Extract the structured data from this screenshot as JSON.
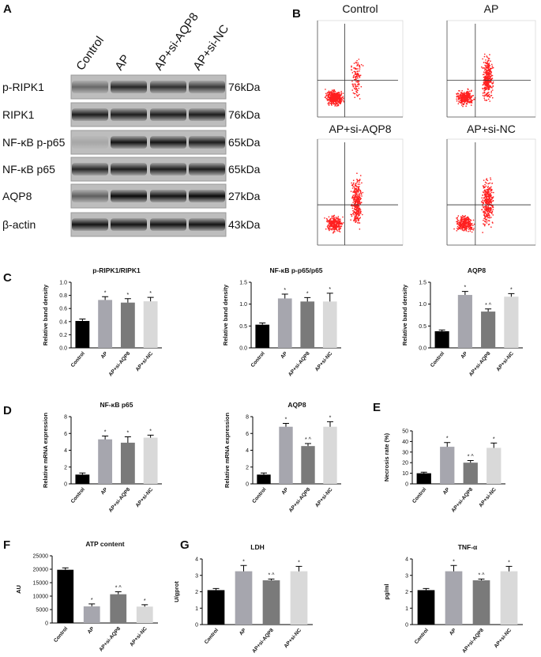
{
  "panel_labels": [
    "A",
    "B",
    "C",
    "D",
    "E",
    "F",
    "G"
  ],
  "blot": {
    "columns": [
      "Control",
      "AP",
      "AP+si-AQP8",
      "AP+si-NC"
    ],
    "rows": [
      {
        "label": "p-RIPK1",
        "size": "76kDa"
      },
      {
        "label": "RIPK1",
        "size": "76kDa"
      },
      {
        "label": "NF-κB p-p65",
        "size": "65kDa"
      },
      {
        "label": "NF-κB p65",
        "size": "65kDa"
      },
      {
        "label": "AQP8",
        "size": "27kDa"
      },
      {
        "label": "β-actin",
        "size": "43kDa"
      }
    ]
  },
  "flow": {
    "plots": [
      {
        "title": "Control"
      },
      {
        "title": "AP"
      },
      {
        "title": "AP+si-AQP8"
      },
      {
        "title": "AP+si-NC"
      }
    ]
  },
  "chart_data": [
    {
      "type": "bar",
      "title": "p-RIPK1/RIPK1",
      "ylabel": "Relative band density",
      "categories": [
        "Control",
        "AP",
        "AP+si-AQP8",
        "AP+si-NC"
      ],
      "series": [
        {
          "colors": [
            "#000000",
            "#a6a6ae",
            "#7a7a7a",
            "#d9d9d9"
          ],
          "values": [
            0.41,
            0.73,
            0.69,
            0.71
          ],
          "errors": [
            0.03,
            0.05,
            0.06,
            0.06
          ],
          "annotations": [
            null,
            "*",
            "*",
            "*"
          ]
        }
      ],
      "ylim": [
        0,
        1
      ],
      "yticks": [
        {
          "value": 0,
          "label": "0.0"
        },
        0.2,
        0.4,
        0.6,
        0.8,
        {
          "value": 1,
          "label": "1.0"
        }
      ]
    },
    {
      "type": "bar",
      "title": "NF-κB p-p65/p65",
      "ylabel": "Relative band density",
      "categories": [
        "Control",
        "AP",
        "AP+si-AQP8",
        "AP+si-NC"
      ],
      "series": [
        {
          "colors": [
            "#000000",
            "#a6a6ae",
            "#7a7a7a",
            "#d9d9d9"
          ],
          "values": [
            0.53,
            1.13,
            1.06,
            1.06
          ],
          "errors": [
            0.04,
            0.1,
            0.09,
            0.19
          ],
          "annotations": [
            null,
            "*",
            "*",
            "*"
          ]
        }
      ],
      "ylim": [
        0,
        1.5
      ],
      "yticks": [
        {
          "value": 0,
          "label": "0.0"
        },
        0.5,
        {
          "value": 1,
          "label": "1.0"
        },
        1.5
      ]
    },
    {
      "type": "bar",
      "title": "AQP8",
      "ylabel": "Relative band density",
      "categories": [
        "Control",
        "AP",
        "AP+si-AQP8",
        "AP+si-NC"
      ],
      "series": [
        {
          "colors": [
            "#000000",
            "#a6a6ae",
            "#7a7a7a",
            "#d9d9d9"
          ],
          "values": [
            0.38,
            1.21,
            0.83,
            1.17
          ],
          "errors": [
            0.03,
            0.08,
            0.06,
            0.07
          ],
          "annotations": [
            null,
            "*",
            "* ^",
            "*"
          ]
        }
      ],
      "ylim": [
        0,
        1.5
      ],
      "yticks": [
        {
          "value": 0,
          "label": "0.0"
        },
        0.5,
        {
          "value": 1,
          "label": "1.0"
        },
        1.5
      ]
    },
    {
      "type": "bar",
      "title": "NF-κB p65",
      "ylabel": "Relative mRNA expression",
      "categories": [
        "Control",
        "AP",
        "AP+si-AQP8",
        "AP+si-NC"
      ],
      "series": [
        {
          "colors": [
            "#000000",
            "#a6a6ae",
            "#7a7a7a",
            "#d9d9d9"
          ],
          "values": [
            1.1,
            5.3,
            4.9,
            5.5
          ],
          "errors": [
            0.2,
            0.4,
            0.7,
            0.3
          ],
          "annotations": [
            null,
            "*",
            "*",
            "*"
          ]
        }
      ],
      "ylim": [
        0,
        8
      ],
      "yticks": [
        0,
        2,
        4,
        6,
        8
      ]
    },
    {
      "type": "bar",
      "title": "AQP8",
      "ylabel": "Relative mRNA expression",
      "categories": [
        "Control",
        "AP",
        "AP+si-AQP8",
        "AP+si-NC"
      ],
      "series": [
        {
          "colors": [
            "#000000",
            "#a6a6ae",
            "#7a7a7a",
            "#d9d9d9"
          ],
          "values": [
            1.1,
            6.8,
            4.5,
            6.8
          ],
          "errors": [
            0.2,
            0.4,
            0.3,
            0.6
          ],
          "annotations": [
            null,
            "*",
            "* ^",
            "*"
          ]
        }
      ],
      "ylim": [
        0,
        8
      ],
      "yticks": [
        0,
        2,
        4,
        6,
        8
      ]
    },
    {
      "type": "bar",
      "ylabel": "Necrosis rate (%)",
      "categories": [
        "Control",
        "AP",
        "AP+si-AQP8",
        "AP+si-NC"
      ],
      "series": [
        {
          "colors": [
            "#000000",
            "#a6a6ae",
            "#7a7a7a",
            "#d9d9d9"
          ],
          "values": [
            10,
            35,
            20,
            34
          ],
          "errors": [
            1,
            4,
            2,
            4.5
          ],
          "annotations": [
            null,
            "*",
            "* ^",
            "*"
          ]
        }
      ],
      "ylim": [
        0,
        50
      ],
      "yticks": [
        0,
        10,
        20,
        30,
        40,
        50
      ]
    },
    {
      "type": "bar",
      "title": "ATP content",
      "ylabel": "AU",
      "categories": [
        "Control",
        "AP",
        "AP+si-AQP8",
        "AP+si-NC"
      ],
      "series": [
        {
          "colors": [
            "#000000",
            "#a6a6ae",
            "#7a7a7a",
            "#d9d9d9"
          ],
          "values": [
            19800,
            6200,
            10700,
            6100
          ],
          "errors": [
            700,
            900,
            900,
            700
          ],
          "annotations": [
            null,
            "*",
            "* ^",
            "*"
          ]
        }
      ],
      "ylim": [
        0,
        25000
      ],
      "yticks": [
        0,
        5000,
        10000,
        15000,
        20000,
        25000
      ]
    },
    {
      "type": "bar",
      "title": "LDH",
      "ylabel": "U/gprot",
      "categories": [
        "Control",
        "AP",
        "AP+si-AQP8",
        "AP+si-NC"
      ],
      "series": [
        {
          "colors": [
            "#000000",
            "#a6a6ae",
            "#7a7a7a",
            "#d9d9d9"
          ],
          "values": [
            2.1,
            3.25,
            2.7,
            3.25
          ],
          "errors": [
            0.1,
            0.35,
            0.08,
            0.3
          ],
          "annotations": [
            null,
            "*",
            "* ^",
            "*"
          ]
        }
      ],
      "ylim": [
        0,
        4
      ],
      "yticks": [
        0,
        1,
        2,
        3,
        4
      ]
    },
    {
      "type": "bar",
      "title": "TNF-α",
      "ylabel": "pg/ml",
      "categories": [
        "Control",
        "AP",
        "AP+si-AQP8",
        "AP+si-NC"
      ],
      "series": [
        {
          "colors": [
            "#000000",
            "#a6a6ae",
            "#7a7a7a",
            "#d9d9d9"
          ],
          "values": [
            2.1,
            3.25,
            2.7,
            3.25
          ],
          "errors": [
            0.1,
            0.35,
            0.08,
            0.3
          ],
          "annotations": [
            null,
            "*",
            "* ^",
            "*"
          ]
        }
      ],
      "ylim": [
        0,
        4
      ],
      "yticks": [
        0,
        1,
        2,
        3,
        4
      ]
    }
  ]
}
